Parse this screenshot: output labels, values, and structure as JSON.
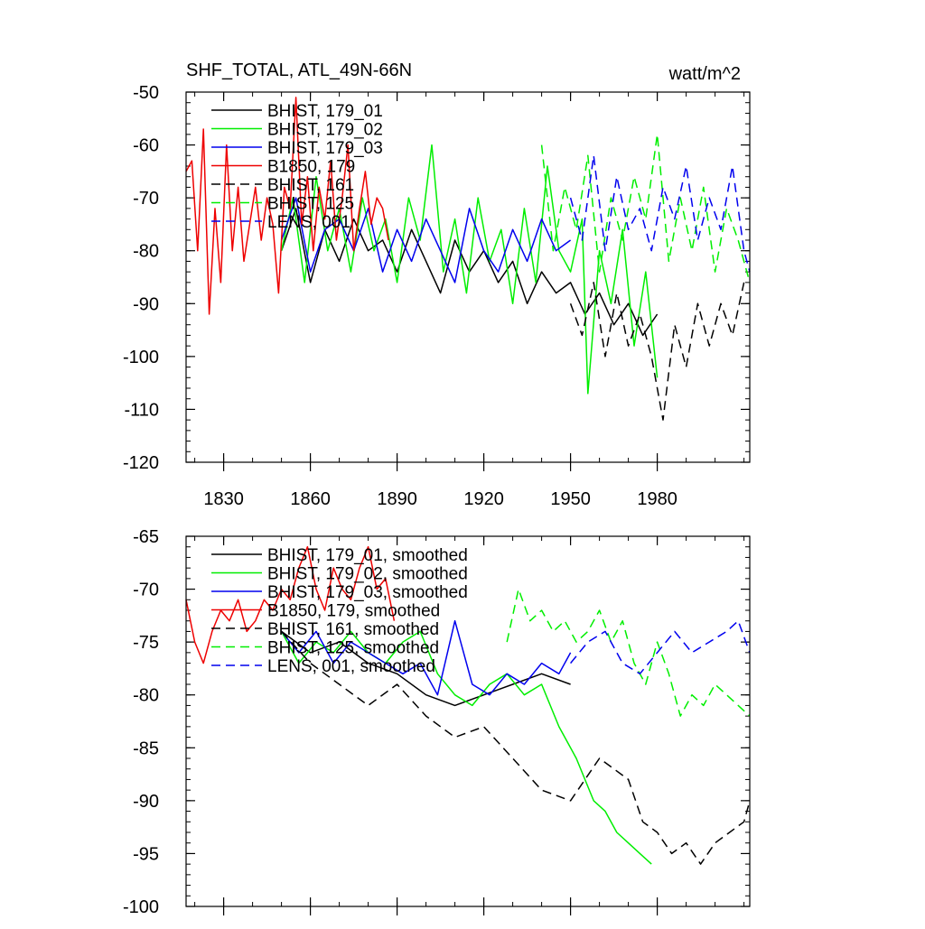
{
  "title_left": "SHF_TOTAL, ATL_49N-66N",
  "title_right": "watt/m^2",
  "chart_data": [
    {
      "type": "line",
      "ylim": [
        -120,
        -50
      ],
      "yticks": [
        -50,
        -60,
        -70,
        -80,
        -90,
        -100,
        -110,
        -120
      ],
      "xlim": [
        1817,
        2012
      ],
      "xticks": [
        1830,
        1860,
        1890,
        1920,
        1950,
        1980
      ],
      "show_xtick_labels": true,
      "series": [
        {
          "name": "BHIST, 179_01",
          "color": "#000000",
          "dash": "solid",
          "x": [
            1850,
            1855,
            1860,
            1865,
            1870,
            1875,
            1880,
            1885,
            1890,
            1895,
            1900,
            1905,
            1910,
            1915,
            1920,
            1925,
            1930,
            1935,
            1940,
            1945,
            1950,
            1955,
            1960,
            1965,
            1970,
            1975,
            1980
          ],
          "y": [
            -80,
            -72,
            -86,
            -76,
            -82,
            -74,
            -80,
            -78,
            -84,
            -76,
            -82,
            -88,
            -78,
            -84,
            -80,
            -86,
            -82,
            -90,
            -84,
            -88,
            -86,
            -92,
            -88,
            -94,
            -90,
            -96,
            -92
          ]
        },
        {
          "name": "BHIST, 179_02",
          "color": "#00ee00",
          "dash": "solid",
          "x": [
            1850,
            1854,
            1858,
            1862,
            1866,
            1870,
            1874,
            1878,
            1882,
            1886,
            1890,
            1894,
            1898,
            1902,
            1906,
            1910,
            1914,
            1918,
            1922,
            1926,
            1930,
            1934,
            1938,
            1942,
            1946,
            1950,
            1954,
            1956,
            1960,
            1964,
            1968,
            1972,
            1976,
            1980
          ],
          "y": [
            -80,
            -70,
            -86,
            -66,
            -80,
            -72,
            -84,
            -70,
            -80,
            -74,
            -86,
            -70,
            -78,
            -60,
            -84,
            -74,
            -88,
            -70,
            -82,
            -76,
            -90,
            -72,
            -86,
            -64,
            -80,
            -84,
            -74,
            -107,
            -80,
            -90,
            -76,
            -98,
            -84,
            -104
          ]
        },
        {
          "name": "BHIST, 179_03",
          "color": "#0000ee",
          "dash": "solid",
          "x": [
            1850,
            1855,
            1860,
            1865,
            1870,
            1875,
            1880,
            1885,
            1890,
            1895,
            1900,
            1905,
            1910,
            1915,
            1920,
            1925,
            1930,
            1935,
            1940,
            1945,
            1950
          ],
          "y": [
            -78,
            -70,
            -84,
            -76,
            -74,
            -80,
            -72,
            -84,
            -76,
            -82,
            -74,
            -80,
            -86,
            -72,
            -80,
            -84,
            -76,
            -82,
            -74,
            -80,
            -78
          ]
        },
        {
          "name": "B1850, 179",
          "color": "#ee0000",
          "dash": "solid",
          "x": [
            1817,
            1819,
            1821,
            1823,
            1825,
            1827,
            1829,
            1831,
            1833,
            1835,
            1837,
            1839,
            1841,
            1843,
            1845,
            1847,
            1849,
            1851,
            1853,
            1855,
            1857,
            1859,
            1861,
            1863,
            1865,
            1867,
            1869,
            1871,
            1873,
            1875,
            1877,
            1879,
            1881,
            1883,
            1885,
            1887
          ],
          "y": [
            -65,
            -63,
            -80,
            -57,
            -92,
            -72,
            -86,
            -60,
            -80,
            -68,
            -82,
            -75,
            -68,
            -78,
            -70,
            -75,
            -88,
            -68,
            -72,
            -51,
            -75,
            -66,
            -80,
            -68,
            -74,
            -63,
            -78,
            -70,
            -60,
            -80,
            -72,
            -65,
            -75,
            -70,
            -72,
            -78
          ]
        },
        {
          "name": "BHIST, 161",
          "color": "#000000",
          "dash": "dashed",
          "x": [
            1950,
            1954,
            1958,
            1962,
            1966,
            1970,
            1974,
            1978,
            1982,
            1986,
            1990,
            1994,
            1998,
            2002,
            2006,
            2010
          ],
          "y": [
            -90,
            -96,
            -86,
            -100,
            -88,
            -98,
            -92,
            -100,
            -112,
            -94,
            -102,
            -90,
            -98,
            -90,
            -96,
            -86
          ]
        },
        {
          "name": "BHIST, 125",
          "color": "#00ee00",
          "dash": "dashed",
          "x": [
            1940,
            1944,
            1948,
            1952,
            1956,
            1960,
            1964,
            1968,
            1972,
            1976,
            1980,
            1984,
            1988,
            1992,
            1996,
            2000,
            2004,
            2008,
            2012
          ],
          "y": [
            -60,
            -80,
            -68,
            -76,
            -62,
            -84,
            -70,
            -78,
            -66,
            -74,
            -58,
            -82,
            -70,
            -80,
            -68,
            -84,
            -72,
            -78,
            -86
          ]
        },
        {
          "name": "LENS, 001",
          "color": "#0000ee",
          "dash": "dashed",
          "x": [
            1950,
            1954,
            1958,
            1962,
            1966,
            1970,
            1974,
            1978,
            1982,
            1986,
            1990,
            1994,
            1998,
            2002,
            2006,
            2010,
            2012
          ],
          "y": [
            -70,
            -78,
            -62,
            -80,
            -66,
            -76,
            -72,
            -80,
            -68,
            -74,
            -64,
            -78,
            -70,
            -76,
            -64,
            -80,
            -84
          ]
        }
      ]
    },
    {
      "type": "line",
      "ylim": [
        -100,
        -65
      ],
      "yticks": [
        -65,
        -70,
        -75,
        -80,
        -85,
        -90,
        -95,
        -100
      ],
      "xlim": [
        1817,
        2012
      ],
      "xticks": [
        1830,
        1860,
        1890,
        1920,
        1950,
        1980
      ],
      "show_xtick_labels": false,
      "series": [
        {
          "name": "BHIST, 179_01, smoothed",
          "color": "#000000",
          "dash": "solid",
          "x": [
            1850,
            1860,
            1870,
            1880,
            1890,
            1900,
            1910,
            1920,
            1930,
            1940,
            1950
          ],
          "y": [
            -74,
            -76,
            -75,
            -77,
            -78,
            -80,
            -81,
            -80,
            -79,
            -78,
            -79
          ]
        },
        {
          "name": "BHIST, 179_02, smoothed",
          "color": "#00ee00",
          "dash": "solid",
          "x": [
            1850,
            1856,
            1862,
            1868,
            1874,
            1880,
            1886,
            1892,
            1898,
            1904,
            1910,
            1916,
            1922,
            1928,
            1934,
            1940,
            1946,
            1952,
            1958,
            1962,
            1966,
            1970,
            1974,
            1978
          ],
          "y": [
            -74,
            -77,
            -75,
            -76,
            -74,
            -76,
            -77,
            -75,
            -74,
            -78,
            -80,
            -81,
            -79,
            -78,
            -80,
            -79,
            -83,
            -86,
            -90,
            -91,
            -93,
            -94,
            -95,
            -96
          ]
        },
        {
          "name": "BHIST, 179_03, smoothed",
          "color": "#0000ee",
          "dash": "solid",
          "x": [
            1850,
            1856,
            1862,
            1868,
            1874,
            1880,
            1886,
            1892,
            1898,
            1904,
            1910,
            1916,
            1922,
            1928,
            1934,
            1940,
            1946,
            1950
          ],
          "y": [
            -74,
            -76,
            -74,
            -77,
            -75,
            -76,
            -77,
            -78,
            -77,
            -80,
            -73,
            -79,
            -80,
            -78,
            -79,
            -77,
            -78,
            -76
          ]
        },
        {
          "name": "B1850, 179, smoothed",
          "color": "#ee0000",
          "dash": "solid",
          "x": [
            1817,
            1820,
            1823,
            1826,
            1829,
            1832,
            1835,
            1838,
            1841,
            1844,
            1847,
            1850,
            1853,
            1856,
            1859,
            1862,
            1865,
            1868,
            1871,
            1874,
            1877,
            1880,
            1883,
            1886,
            1889
          ],
          "y": [
            -71,
            -75,
            -77,
            -74,
            -72,
            -73,
            -71,
            -74,
            -73,
            -71,
            -72,
            -70,
            -71,
            -68,
            -66,
            -70,
            -72,
            -68,
            -70,
            -71,
            -68,
            -66,
            -70,
            -69,
            -73
          ]
        },
        {
          "name": "BHIST, 161, smoothed",
          "color": "#000000",
          "dash": "dashed",
          "x": [
            1850,
            1860,
            1870,
            1880,
            1890,
            1900,
            1910,
            1920,
            1930,
            1940,
            1950,
            1960,
            1970,
            1975,
            1980,
            1985,
            1990,
            1995,
            2000,
            2005,
            2010,
            2012
          ],
          "y": [
            -74,
            -77,
            -79,
            -81,
            -79,
            -82,
            -84,
            -83,
            -86,
            -89,
            -90,
            -86,
            -88,
            -92,
            -93,
            -95,
            -94,
            -96,
            -94,
            -93,
            -92,
            -90
          ]
        },
        {
          "name": "BHIST, 125, smoothed",
          "color": "#00ee00",
          "dash": "dashed",
          "x": [
            1928,
            1932,
            1936,
            1940,
            1944,
            1948,
            1952,
            1956,
            1960,
            1964,
            1968,
            1972,
            1976,
            1980,
            1984,
            1988,
            1992,
            1996,
            2000,
            2004,
            2008,
            2012
          ],
          "y": [
            -75,
            -70,
            -73,
            -72,
            -74,
            -73,
            -75,
            -74,
            -72,
            -75,
            -73,
            -77,
            -79,
            -75,
            -78,
            -82,
            -80,
            -81,
            -79,
            -80,
            -81,
            -82
          ]
        },
        {
          "name": "LENS, 001, smoothed",
          "color": "#0000ee",
          "dash": "dashed",
          "x": [
            1950,
            1956,
            1962,
            1968,
            1974,
            1980,
            1986,
            1992,
            1998,
            2004,
            2008,
            2012
          ],
          "y": [
            -77,
            -75,
            -74,
            -77,
            -78,
            -76,
            -74,
            -76,
            -75,
            -74,
            -73,
            -76
          ]
        }
      ]
    }
  ]
}
